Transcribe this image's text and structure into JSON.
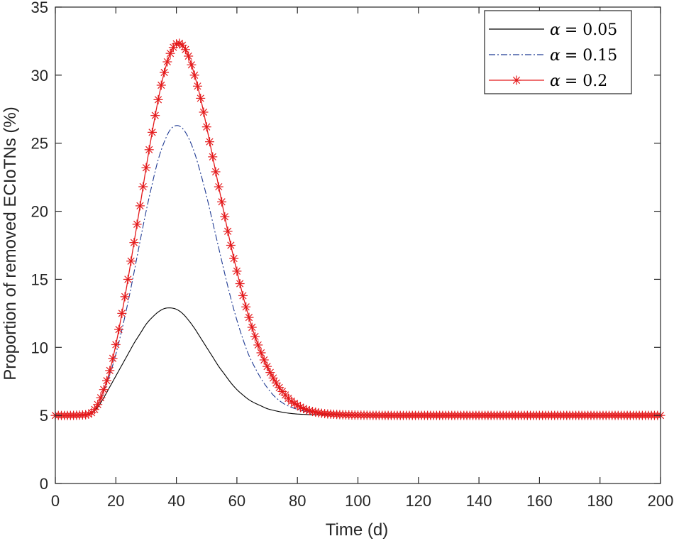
{
  "chart_data": {
    "type": "line",
    "title": "",
    "xlabel": "Time (d)",
    "ylabel": "Proportion of removed ECIoTNs (%)",
    "xlim": [
      0,
      200
    ],
    "ylim": [
      0,
      35
    ],
    "xticks": [
      0,
      20,
      40,
      60,
      80,
      100,
      120,
      140,
      160,
      180,
      200
    ],
    "yticks": [
      0,
      5,
      10,
      15,
      20,
      25,
      30,
      35
    ],
    "grid": false,
    "legend_position": "top-right",
    "series": [
      {
        "name": "α = 0.05",
        "legend_symbol": "α",
        "legend_value": "= 0.05",
        "color": "#000000",
        "line_style": "solid",
        "marker": "none",
        "x": [
          0,
          5,
          10,
          12,
          14,
          16,
          18,
          20,
          22,
          24,
          26,
          28,
          30,
          32,
          34,
          36,
          38,
          40,
          42,
          44,
          46,
          48,
          50,
          52,
          54,
          56,
          58,
          60,
          62,
          64,
          66,
          68,
          70,
          72,
          74,
          76,
          78,
          80,
          85,
          90,
          95,
          100,
          110,
          120,
          140,
          160,
          180,
          200
        ],
        "y": [
          5.0,
          5.0,
          5.05,
          5.2,
          5.6,
          6.3,
          7.1,
          7.9,
          8.7,
          9.5,
          10.3,
          11.0,
          11.7,
          12.2,
          12.6,
          12.85,
          12.9,
          12.8,
          12.5,
          12.0,
          11.4,
          10.7,
          10.0,
          9.3,
          8.6,
          8.0,
          7.4,
          6.9,
          6.5,
          6.15,
          5.9,
          5.7,
          5.5,
          5.38,
          5.28,
          5.2,
          5.14,
          5.1,
          5.05,
          5.03,
          5.02,
          5.01,
          5.0,
          5.0,
          5.0,
          5.0,
          5.0,
          5.0
        ]
      },
      {
        "name": "α = 0.15",
        "legend_symbol": "α",
        "legend_value": "= 0.15",
        "color": "#1f3a93",
        "line_style": "dashdot",
        "marker": "none",
        "x": [
          0,
          5,
          10,
          12,
          14,
          16,
          18,
          20,
          22,
          24,
          26,
          28,
          30,
          32,
          34,
          36,
          38,
          40,
          42,
          44,
          46,
          48,
          50,
          52,
          54,
          56,
          58,
          60,
          62,
          64,
          66,
          68,
          70,
          72,
          74,
          76,
          78,
          80,
          82,
          84,
          86,
          88,
          90,
          95,
          100,
          110,
          120,
          140,
          160,
          180,
          200
        ],
        "y": [
          5.0,
          5.0,
          5.05,
          5.2,
          5.8,
          6.8,
          8.0,
          9.5,
          11.3,
          13.3,
          15.5,
          17.8,
          20.0,
          22.0,
          23.8,
          25.1,
          26.0,
          26.3,
          26.1,
          25.4,
          24.3,
          22.8,
          21.1,
          19.2,
          17.3,
          15.4,
          13.6,
          12.0,
          10.6,
          9.4,
          8.5,
          7.7,
          7.05,
          6.5,
          6.1,
          5.8,
          5.6,
          5.45,
          5.33,
          5.24,
          5.17,
          5.12,
          5.08,
          5.04,
          5.02,
          5.0,
          5.0,
          5.0,
          5.0,
          5.0,
          5.0
        ]
      },
      {
        "name": "α = 0.2",
        "legend_symbol": "α",
        "legend_value": "= 0.2",
        "color": "#e41a1c",
        "line_style": "solid",
        "marker": "asterisk",
        "x": [
          0,
          5,
          10,
          12,
          14,
          16,
          18,
          20,
          22,
          24,
          26,
          28,
          30,
          32,
          34,
          36,
          38,
          40,
          42,
          44,
          46,
          48,
          50,
          52,
          54,
          56,
          58,
          60,
          62,
          64,
          66,
          68,
          70,
          72,
          74,
          76,
          78,
          80,
          82,
          84,
          86,
          88,
          90,
          95,
          100,
          110,
          120,
          140,
          160,
          180,
          200
        ],
        "y": [
          5.0,
          5.0,
          5.05,
          5.2,
          5.8,
          6.9,
          8.3,
          10.2,
          12.5,
          15.0,
          17.7,
          20.4,
          23.2,
          25.8,
          28.2,
          30.2,
          31.6,
          32.3,
          32.2,
          31.4,
          30.0,
          28.3,
          26.2,
          24.0,
          21.8,
          19.6,
          17.5,
          15.6,
          13.8,
          12.2,
          10.8,
          9.6,
          8.6,
          7.75,
          7.05,
          6.5,
          6.05,
          5.75,
          5.5,
          5.35,
          5.24,
          5.16,
          5.11,
          5.05,
          5.02,
          5.0,
          5.0,
          5.0,
          5.0,
          5.0,
          5.0
        ]
      }
    ]
  }
}
